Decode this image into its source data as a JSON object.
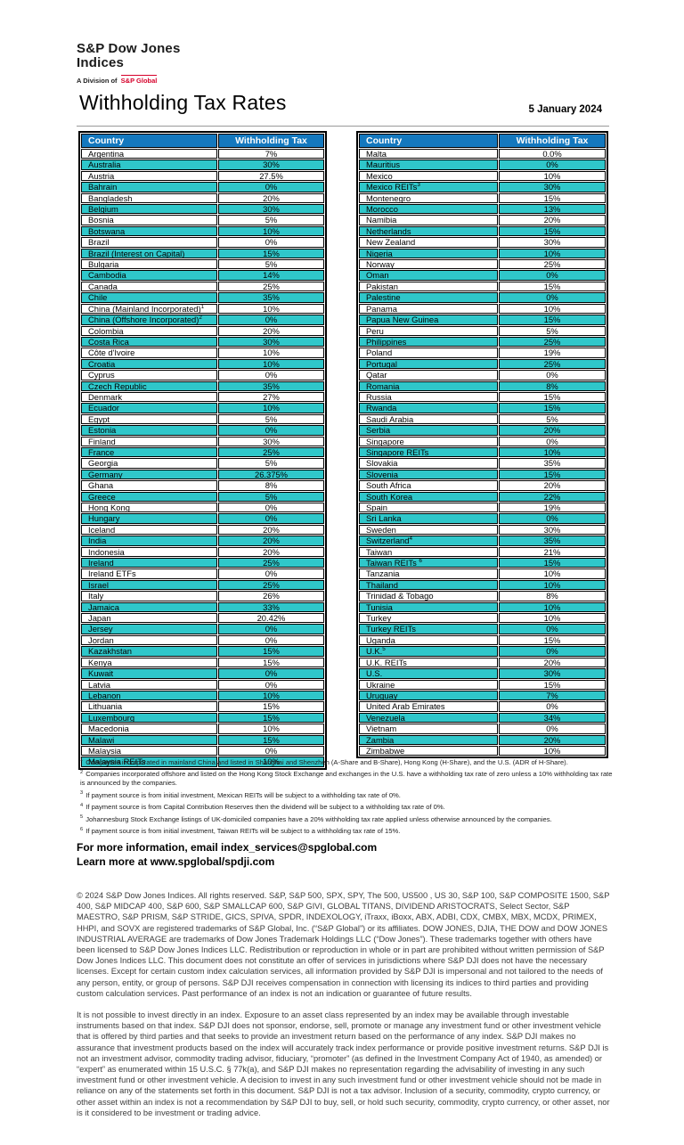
{
  "colors": {
    "header_blue": "#1478BE",
    "row_teal": "#2FC7CA",
    "brand_red": "#D6002A"
  },
  "logo": {
    "line1": "S&P Dow Jones",
    "line2": "Indices",
    "division_prefix": "A Division of",
    "division_brand": "S&P Global"
  },
  "header": {
    "title": "Withholding Tax Rates",
    "date": "5 January 2024"
  },
  "table": {
    "column_headers": {
      "country": "Country",
      "tax": "Withholding Tax"
    },
    "left_rows": [
      {
        "country": "Argentina",
        "tax": "7%"
      },
      {
        "country": "Australia",
        "tax": "30%"
      },
      {
        "country": "Austria",
        "tax": "27.5%"
      },
      {
        "country": "Bahrain",
        "tax": "0%"
      },
      {
        "country": "Bangladesh",
        "tax": "20%"
      },
      {
        "country": "Belgium",
        "tax": "30%"
      },
      {
        "country": "Bosnia",
        "tax": "5%"
      },
      {
        "country": "Botswana",
        "tax": "10%"
      },
      {
        "country": "Brazil",
        "tax": "0%"
      },
      {
        "country": "Brazil (Interest on Capital)",
        "tax": "15%"
      },
      {
        "country": "Bulgaria",
        "tax": "5%"
      },
      {
        "country": "Cambodia",
        "tax": "14%"
      },
      {
        "country": "Canada",
        "tax": "25%"
      },
      {
        "country": "Chile",
        "tax": "35%"
      },
      {
        "country": "China (Mainland Incorporated)",
        "sup": "1",
        "tax": "10%"
      },
      {
        "country": "China (Offshore Incorporated)",
        "sup": "2",
        "tax": "0%"
      },
      {
        "country": "Colombia",
        "tax": "20%"
      },
      {
        "country": "Costa Rica",
        "tax": "30%"
      },
      {
        "country": "Côte d'Ivoire",
        "tax": "10%"
      },
      {
        "country": "Croatia",
        "tax": "10%"
      },
      {
        "country": "Cyprus",
        "tax": "0%"
      },
      {
        "country": "Czech Republic",
        "tax": "35%"
      },
      {
        "country": "Denmark",
        "tax": "27%"
      },
      {
        "country": "Ecuador",
        "tax": "10%"
      },
      {
        "country": "Egypt",
        "tax": "5%"
      },
      {
        "country": "Estonia",
        "tax": "0%"
      },
      {
        "country": "Finland",
        "tax": "30%"
      },
      {
        "country": "France",
        "tax": "25%"
      },
      {
        "country": "Georgia",
        "tax": "5%"
      },
      {
        "country": "Germany",
        "tax": "26.375%"
      },
      {
        "country": "Ghana",
        "tax": "8%"
      },
      {
        "country": "Greece",
        "tax": "5%"
      },
      {
        "country": "Hong Kong",
        "tax": "0%"
      },
      {
        "country": "Hungary",
        "tax": "0%"
      },
      {
        "country": "Iceland",
        "tax": "20%"
      },
      {
        "country": "India",
        "tax": "20%"
      },
      {
        "country": "Indonesia",
        "tax": "20%"
      },
      {
        "country": "Ireland",
        "tax": "25%"
      },
      {
        "country": "Ireland ETFs",
        "tax": "0%"
      },
      {
        "country": "Israel",
        "tax": "25%"
      },
      {
        "country": "Italy",
        "tax": "26%"
      },
      {
        "country": "Jamaica",
        "tax": "33%"
      },
      {
        "country": "Japan",
        "tax": "20.42%"
      },
      {
        "country": "Jersey",
        "tax": "0%"
      },
      {
        "country": "Jordan",
        "tax": "0%"
      },
      {
        "country": "Kazakhstan",
        "tax": "15%"
      },
      {
        "country": "Kenya",
        "tax": "15%"
      },
      {
        "country": "Kuwait",
        "tax": "0%"
      },
      {
        "country": "Latvia",
        "tax": "0%"
      },
      {
        "country": "Lebanon",
        "tax": "10%"
      },
      {
        "country": "Lithuania",
        "tax": "15%"
      },
      {
        "country": "Luxembourg",
        "tax": "15%"
      },
      {
        "country": "Macedonia",
        "tax": "10%"
      },
      {
        "country": "Malawi",
        "tax": "15%"
      },
      {
        "country": "Malaysia",
        "tax": "0%"
      },
      {
        "country": "Malaysia REITs",
        "tax": "10%"
      }
    ],
    "right_rows": [
      {
        "country": "Malta",
        "tax": "0.0%"
      },
      {
        "country": "Mauritius",
        "tax": "0%"
      },
      {
        "country": "Mexico",
        "tax": "10%"
      },
      {
        "country": "Mexico REITs",
        "sup": "3",
        "tax": "30%"
      },
      {
        "country": "Montenegro",
        "tax": "15%"
      },
      {
        "country": "Morocco",
        "tax": "13%"
      },
      {
        "country": "Namibia",
        "tax": "20%"
      },
      {
        "country": "Netherlands",
        "tax": "15%"
      },
      {
        "country": "New Zealand",
        "tax": "30%"
      },
      {
        "country": "Nigeria",
        "tax": "10%"
      },
      {
        "country": "Norway",
        "tax": "25%"
      },
      {
        "country": "Oman",
        "tax": "0%"
      },
      {
        "country": "Pakistan",
        "tax": "15%"
      },
      {
        "country": "Palestine",
        "tax": "0%"
      },
      {
        "country": "Panama",
        "tax": "10%"
      },
      {
        "country": "Papua New Guinea",
        "tax": "15%"
      },
      {
        "country": "Peru",
        "tax": "5%"
      },
      {
        "country": "Philippines",
        "tax": "25%"
      },
      {
        "country": "Poland",
        "tax": "19%"
      },
      {
        "country": "Portugal",
        "tax": "25%"
      },
      {
        "country": "Qatar",
        "tax": "0%"
      },
      {
        "country": "Romania",
        "tax": "8%"
      },
      {
        "country": "Russia",
        "tax": "15%"
      },
      {
        "country": "Rwanda",
        "tax": "15%"
      },
      {
        "country": "Saudi Arabia",
        "tax": "5%"
      },
      {
        "country": "Serbia",
        "tax": "20%"
      },
      {
        "country": "Singapore",
        "tax": "0%"
      },
      {
        "country": "Singapore REITs",
        "tax": "10%"
      },
      {
        "country": "Slovakia",
        "tax": "35%"
      },
      {
        "country": "Slovenia",
        "tax": "15%"
      },
      {
        "country": "South Africa",
        "tax": "20%"
      },
      {
        "country": "South Korea",
        "tax": "22%"
      },
      {
        "country": "Spain",
        "tax": "19%"
      },
      {
        "country": "Sri Lanka",
        "tax": "0%"
      },
      {
        "country": "Sweden",
        "tax": "30%"
      },
      {
        "country": "Switzerland",
        "sup": "4",
        "tax": "35%"
      },
      {
        "country": "Taiwan",
        "tax": "21%"
      },
      {
        "country": "Taiwan REITs ",
        "sup": "6",
        "tax": "15%"
      },
      {
        "country": "Tanzania",
        "tax": "10%"
      },
      {
        "country": "Thailand",
        "tax": "10%"
      },
      {
        "country": "Trinidad & Tobago",
        "tax": "8%"
      },
      {
        "country": "Tunisia",
        "tax": "10%"
      },
      {
        "country": "Turkey",
        "tax": "10%"
      },
      {
        "country": "Turkey REITs",
        "tax": "0%"
      },
      {
        "country": "Uganda",
        "tax": "15%"
      },
      {
        "country": "U.K.",
        "sup": "5",
        "tax": "0%"
      },
      {
        "country": "U.K. REITs",
        "tax": "20%"
      },
      {
        "country": "U.S.",
        "tax": "30%"
      },
      {
        "country": "Ukraine",
        "tax": "15%"
      },
      {
        "country": "Uruguay",
        "tax": "7%"
      },
      {
        "country": "United Arab Emirates",
        "tax": "0%"
      },
      {
        "country": "Venezuela",
        "tax": "34%"
      },
      {
        "country": "Vietnam",
        "tax": "0%"
      },
      {
        "country": "Zambia",
        "tax": "20%"
      },
      {
        "country": "Zimbabwe",
        "tax": "10%"
      }
    ]
  },
  "footnotes": [
    {
      "num": "1",
      "text": "Companies incorporated in mainland China and listed in Shanghai and Shenzhen (A-Share and B-Share), Hong Kong (H-Share), and the U.S. (ADR of H-Share)."
    },
    {
      "num": "2",
      "text": "Companies incorporated offshore and listed on the Hong Kong Stock Exchange and exchanges in the U.S. have a withholding tax rate of zero unless a 10% withholding tax rate is announced by the companies."
    },
    {
      "num": "3",
      "text": "If payment source is from initial investment, Mexican REITs will be subject to a withholding tax rate of 0%."
    },
    {
      "num": "4",
      "text": "If payment source is from Capital Contribution Reserves then the dividend will be subject to a withholding tax rate of 0%."
    },
    {
      "num": "5",
      "text": "Johannesburg Stock Exchange listings of UK-domiciled companies have a 20% withholding tax rate applied unless otherwise announced by the companies."
    },
    {
      "num": "6",
      "text": "If payment source is from initial investment, Taiwan REITs will be subject to a withholding tax rate of 15%."
    }
  ],
  "contact": {
    "line1": "For more information, email index_services@spglobal.com",
    "line2": "Learn more at www.spglobal/spdji.com"
  },
  "disclaimer": {
    "para1": "© 2024 S&P Dow Jones Indices. All rights reserved. S&P, S&P 500, SPX, SPY, The 500, US500 , US 30, S&P 100, S&P COMPOSITE 1500, S&P 400, S&P MIDCAP 400, S&P 600, S&P SMALLCAP 600, S&P GIVI, GLOBAL TITANS, DIVIDEND ARISTOCRATS, Select Sector, S&P MAESTRO, S&P PRISM, S&P STRIDE, GICS, SPIVA, SPDR, INDEXOLOGY, iTraxx, iBoxx, ABX, ADBI, CDX, CMBX, MBX, MCDX, PRIMEX, HHPI, and SOVX are registered trademarks of S&P Global, Inc. (“S&P Global”) or its affiliates. DOW JONES, DJIA, THE DOW and DOW JONES INDUSTRIAL AVERAGE are trademarks of Dow Jones Trademark Holdings LLC (“Dow Jones”). These trademarks together with others have been licensed to S&P Dow Jones Indices LLC. Redistribution or reproduction in whole or in part are prohibited without written permission of S&P Dow Jones Indices LLC. This document does not constitute an offer of services in jurisdictions where S&P DJI does not have the necessary licenses. Except for certain custom index calculation services, all information provided by S&P DJI is impersonal and not tailored to the needs of any person, entity, or group of persons. S&P DJI receives compensation in connection with licensing its indices to third parties and providing custom calculation services. Past performance of an index is not an indication or guarantee of future results.",
    "para2": "It is not possible to invest directly in an index. Exposure to an asset class represented by an index may be available through investable instruments based on that index. S&P DJI does not sponsor, endorse, sell, promote or manage any investment fund or other investment vehicle that is offered by third parties and that seeks to provide an investment return based on the performance of any index. S&P DJI makes no assurance that investment products based on the index will accurately track index performance or provide positive investment returns. S&P DJI is not an investment advisor, commodity trading advisor, fiduciary, “promoter” (as defined in the Investment Company Act of 1940, as amended) or “expert” as enumerated within 15 U.S.C. § 77k(a), and S&P DJI makes no representation regarding the advisability of investing in any such investment fund or other investment vehicle. A decision to invest in any such investment fund or other investment vehicle should not be made in reliance on any of the statements set forth in this document. S&P DJI is not a tax advisor. Inclusion of a security, commodity, crypto currency, or other asset within an index is not a recommendation by S&P DJI to buy, sell, or hold such security, commodity, crypto currency, or other asset, nor is it considered to be investment or trading advice."
  }
}
